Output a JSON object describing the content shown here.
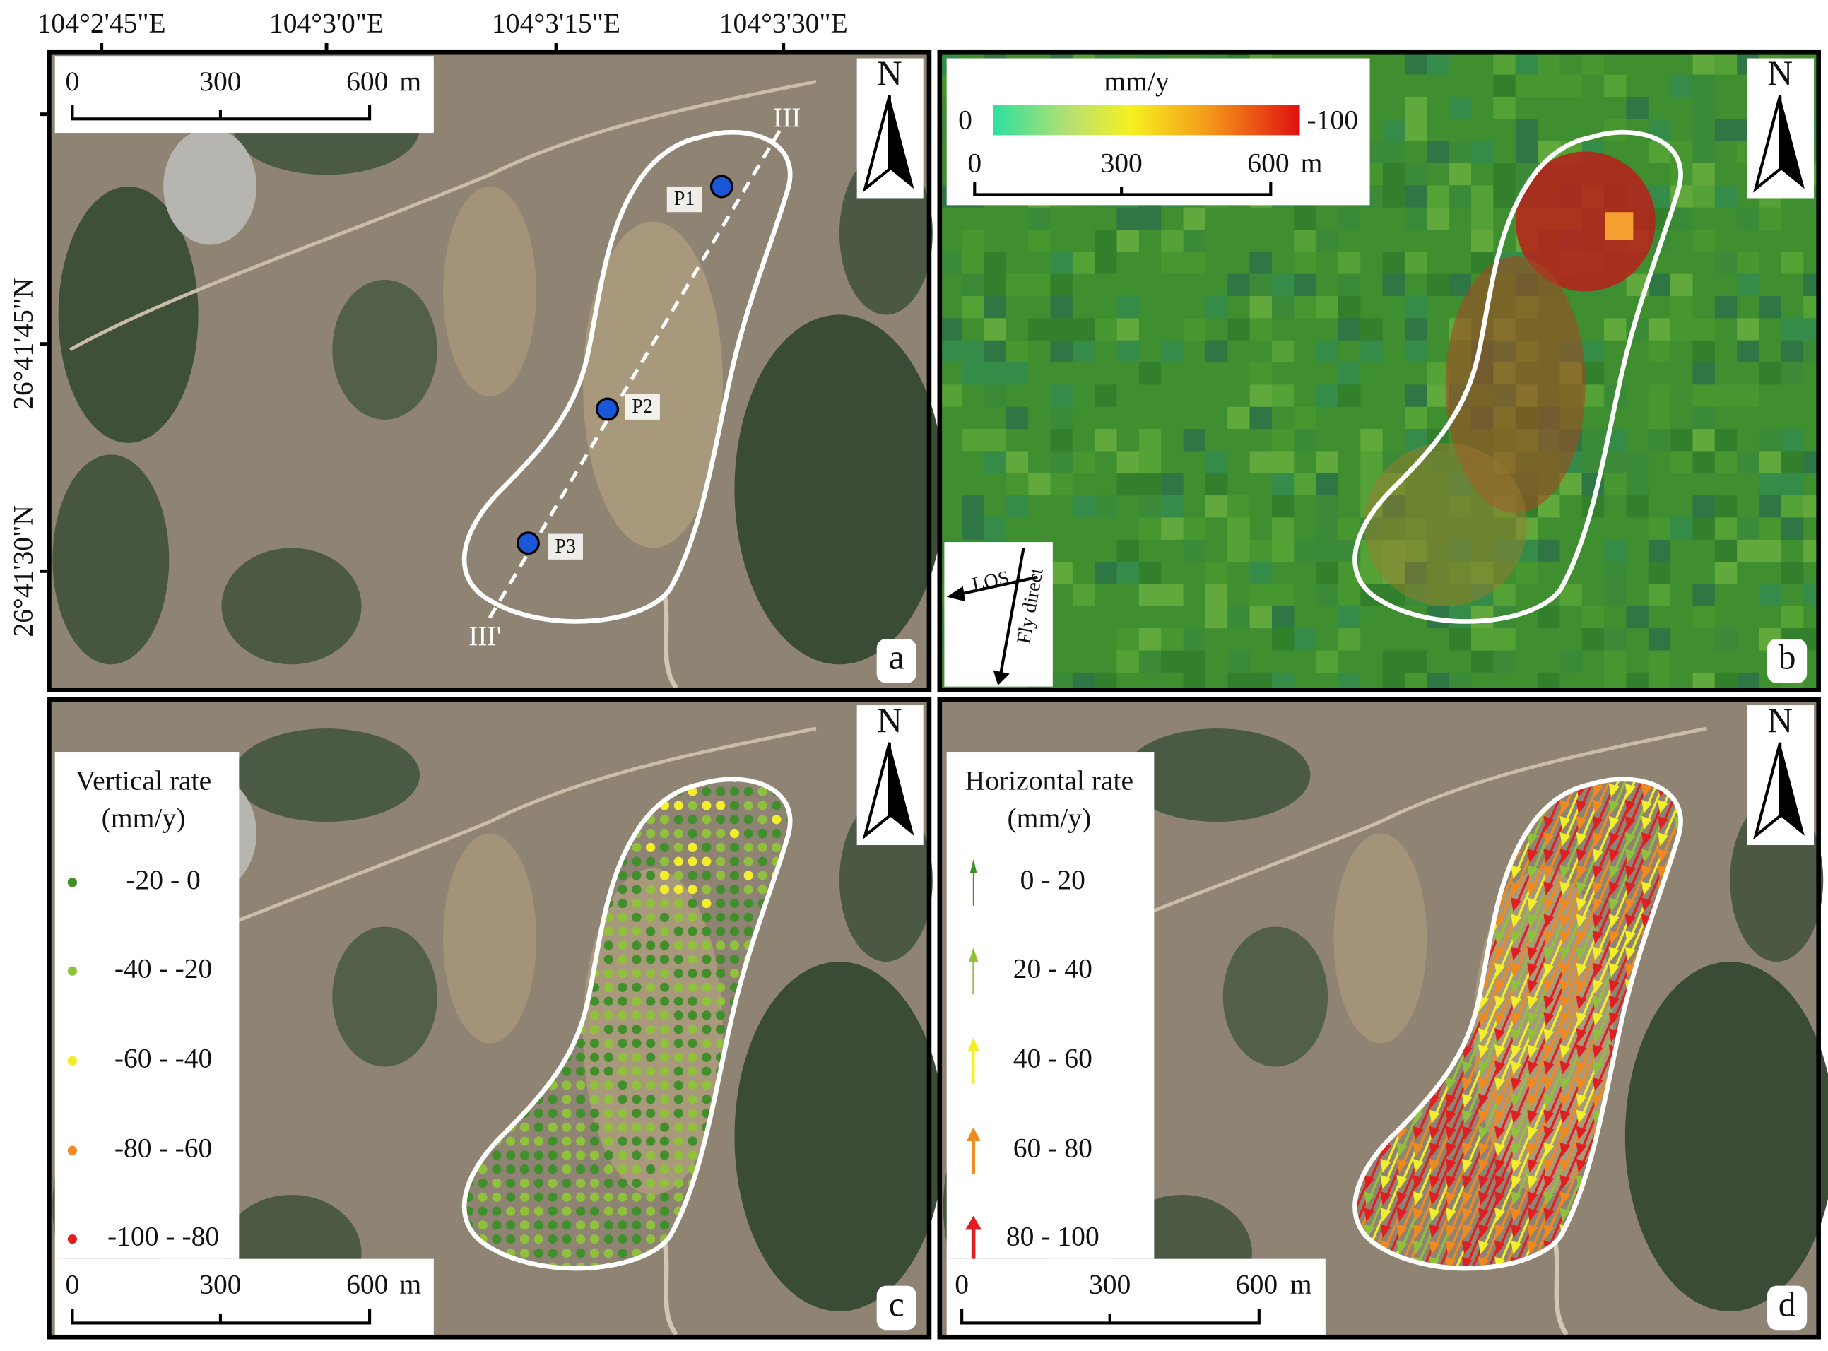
{
  "top_axis_labels": [
    "104°2'45\"E",
    "104°3'0\"E",
    "104°3'15\"E",
    "104°3'30\"E"
  ],
  "left_axis_labels": [
    "26°41'45\"N",
    "26°41'30\"N"
  ],
  "panels": {
    "a": {
      "label": "a",
      "north": "N",
      "scale_bar": {
        "ticks": [
          0,
          300,
          600
        ],
        "unit": "m"
      },
      "profile_start": "III",
      "profile_end": "III'",
      "points": [
        "P1",
        "P2",
        "P3"
      ]
    },
    "b": {
      "label": "b",
      "north": "N",
      "colorbar": {
        "unit": "mm/y",
        "min": 0,
        "max": -100
      },
      "scale_bar": {
        "ticks": [
          0,
          300,
          600
        ],
        "unit": "m"
      },
      "los": "LOS",
      "fly": "Fly direct"
    },
    "c": {
      "label": "c",
      "north": "N",
      "legend_title": "Vertical rate",
      "legend_unit": "(mm/y)",
      "legend": [
        {
          "label": "-20 - 0",
          "color": "#3f8f2a"
        },
        {
          "label": "-40 - -20",
          "color": "#8fc23a"
        },
        {
          "label": "-60 - -40",
          "color": "#f2ee2a"
        },
        {
          "label": "-80 - -60",
          "color": "#f08a1e"
        },
        {
          "label": "-100 - -80",
          "color": "#e02020"
        }
      ],
      "scale_bar": {
        "ticks": [
          0,
          300,
          600
        ],
        "unit": "m"
      }
    },
    "d": {
      "label": "d",
      "north": "N",
      "legend_title": "Horizontal rate",
      "legend_unit": "(mm/y)",
      "legend": [
        {
          "label": "0 - 20",
          "color": "#3f8f2a"
        },
        {
          "label": "20 - 40",
          "color": "#8fc23a"
        },
        {
          "label": "40 - 60",
          "color": "#f2ee2a"
        },
        {
          "label": "60 - 80",
          "color": "#f08a1e"
        },
        {
          "label": "80 - 100",
          "color": "#e02020"
        }
      ],
      "scale_bar": {
        "ticks": [
          0,
          300,
          600
        ],
        "unit": "m"
      }
    }
  }
}
